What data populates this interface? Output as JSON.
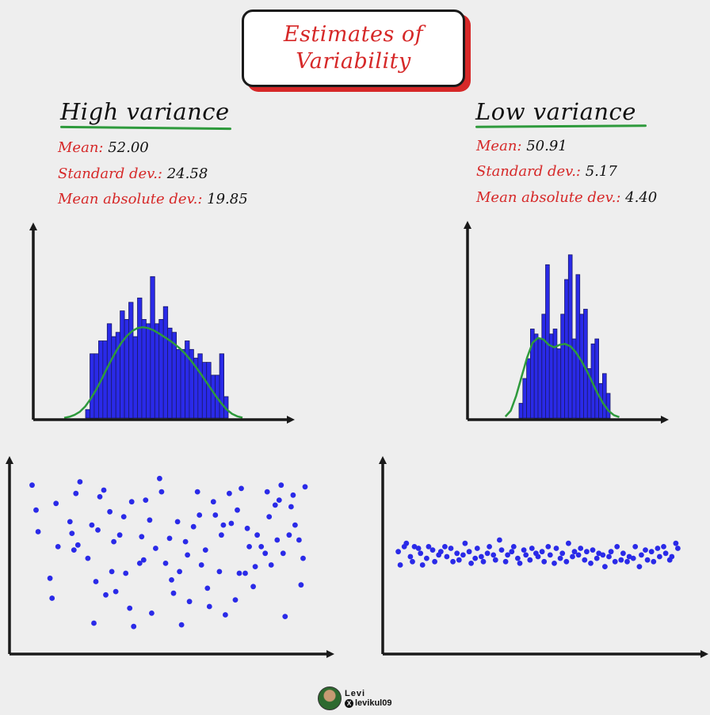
{
  "title": {
    "line1": "Estimates of",
    "line2": "Variability"
  },
  "high": {
    "heading": "High variance",
    "mean_label": "Mean:",
    "mean_value": "52.00",
    "sd_label": "Standard dev.:",
    "sd_value": "24.58",
    "mad_label": "Mean absolute dev.:",
    "mad_value": "19.85"
  },
  "low": {
    "heading": "Low variance",
    "mean_label": "Mean:",
    "mean_value": "50.91",
    "sd_label": "Standard dev.:",
    "sd_value": "5.17",
    "mad_label": "Mean absolute dev.:",
    "mad_value": "4.40"
  },
  "credit": {
    "name": "Levi",
    "handle": "levikul09"
  },
  "colors": {
    "accent": "#d62828",
    "bar": "#2a2ae8",
    "curve": "#2e9a3c",
    "ink": "#1a1a1a"
  },
  "chart_data": [
    {
      "type": "bar",
      "title": "High variance histogram",
      "values": [
        2,
        15,
        15,
        18,
        18,
        22,
        19,
        20,
        25,
        23,
        27,
        19,
        28,
        23,
        22,
        33,
        22,
        23,
        26,
        21,
        20,
        16,
        16,
        18,
        16,
        14,
        15,
        13,
        13,
        10,
        10,
        15,
        5
      ],
      "density": [
        0.05,
        0.3,
        0.75,
        1.5,
        2.7,
        4.4,
        6.4,
        8.7,
        11.2,
        13.6,
        15.8,
        17.7,
        19.2,
        20.3,
        21.0,
        21.2,
        21.0,
        20.5,
        19.8,
        19.0,
        18.2,
        17.3,
        16.3,
        15.1,
        13.7,
        12.1,
        10.4,
        8.6,
        6.8,
        5.0,
        3.4,
        2.0,
        1.0,
        0.4,
        0.1
      ],
      "ylim": [
        0,
        36
      ]
    },
    {
      "type": "bar",
      "title": "Low variance histogram",
      "values": [
        3,
        8,
        12,
        18,
        17,
        16,
        21,
        31,
        17,
        18,
        14,
        21,
        28,
        33,
        16,
        29,
        21,
        22,
        10,
        15,
        16,
        7,
        9,
        5
      ],
      "density": [
        0.3,
        1.5,
        4.5,
        8.4,
        12.2,
        15.2,
        16.2,
        15.9,
        14.8,
        14.3,
        14.8,
        15.0,
        14.5,
        13.3,
        11.6,
        9.6,
        7.3,
        5.0,
        3.0,
        1.5,
        0.6,
        0.2
      ],
      "ylim": [
        0,
        36
      ]
    },
    {
      "type": "scatter",
      "title": "High variance scatter",
      "x": [
        1,
        3,
        4,
        10,
        11,
        13,
        14,
        20,
        21,
        22,
        23,
        24,
        25,
        29,
        31,
        32,
        33,
        34,
        35,
        37,
        38,
        40,
        41,
        42,
        43,
        45,
        47,
        48,
        50,
        51,
        52,
        55,
        56,
        57,
        58,
        60,
        61,
        63,
        65,
        66,
        68,
        70,
        71,
        72,
        74,
        75,
        76,
        78,
        79,
        80,
        82,
        84,
        85,
        86,
        88,
        89,
        90,
        92,
        93,
        95,
        96,
        97,
        98,
        100,
        101,
        103,
        104,
        105,
        106,
        108,
        109,
        110,
        112,
        113,
        114,
        116,
        118,
        119,
        120,
        121,
        123,
        124,
        125,
        126,
        127,
        128,
        130,
        131,
        132,
        133,
        135,
        136,
        137,
        138
      ],
      "y": [
        93,
        78,
        65,
        37,
        25,
        82,
        56,
        71,
        64,
        54,
        88,
        57,
        95,
        49,
        69,
        10,
        35,
        66,
        86,
        90,
        27,
        77,
        41,
        59,
        29,
        63,
        74,
        40,
        19,
        83,
        8,
        46,
        62,
        48,
        84,
        72,
        16,
        55,
        97,
        89,
        46,
        61,
        36,
        28,
        71,
        41,
        9,
        59,
        51,
        23,
        68,
        89,
        75,
        45,
        54,
        31,
        20,
        83,
        75,
        41,
        63,
        69,
        15,
        88,
        70,
        24,
        78,
        40,
        91,
        40,
        67,
        56,
        32,
        44,
        63,
        56,
        52,
        89,
        74,
        45,
        81,
        60,
        84,
        93,
        52,
        14,
        63,
        80,
        87,
        69,
        60,
        33,
        49,
        92
      ],
      "xlim": [
        0,
        140
      ],
      "ylim": [
        0,
        100
      ]
    },
    {
      "type": "scatter",
      "title": "Low variance scatter",
      "x": [
        1,
        2,
        4,
        5,
        7,
        8,
        9,
        11,
        12,
        13,
        15,
        16,
        18,
        19,
        21,
        22,
        24,
        25,
        27,
        28,
        30,
        31,
        33,
        34,
        36,
        37,
        39,
        40,
        42,
        43,
        45,
        46,
        48,
        49,
        51,
        52,
        54,
        55,
        57,
        58,
        60,
        61,
        63,
        64,
        66,
        67,
        69,
        70,
        72,
        73,
        75,
        76,
        78,
        79,
        81,
        82,
        84,
        85,
        87,
        88,
        90,
        91,
        93,
        94,
        96,
        97,
        99,
        100,
        102,
        103,
        105,
        106,
        108,
        109,
        111,
        112,
        114,
        115,
        117,
        118,
        120,
        121,
        123,
        124,
        126,
        127,
        129,
        130,
        132,
        133,
        135,
        136,
        138,
        139
      ],
      "y": [
        53,
        45,
        56,
        58,
        50,
        47,
        56,
        55,
        52,
        45,
        49,
        56,
        54,
        47,
        51,
        53,
        56,
        50,
        55,
        47,
        52,
        48,
        51,
        58,
        53,
        46,
        49,
        55,
        50,
        47,
        52,
        56,
        51,
        48,
        60,
        54,
        47,
        51,
        53,
        56,
        49,
        46,
        54,
        51,
        48,
        55,
        52,
        50,
        53,
        47,
        56,
        51,
        46,
        55,
        49,
        52,
        47,
        58,
        50,
        53,
        51,
        55,
        48,
        53,
        46,
        54,
        49,
        52,
        51,
        44,
        50,
        53,
        47,
        56,
        48,
        52,
        47,
        50,
        49,
        56,
        44,
        51,
        54,
        48,
        53,
        47,
        55,
        50,
        56,
        52,
        48,
        50,
        58,
        55
      ],
      "xlim": [
        0,
        140
      ],
      "ylim": [
        0,
        100
      ]
    }
  ]
}
